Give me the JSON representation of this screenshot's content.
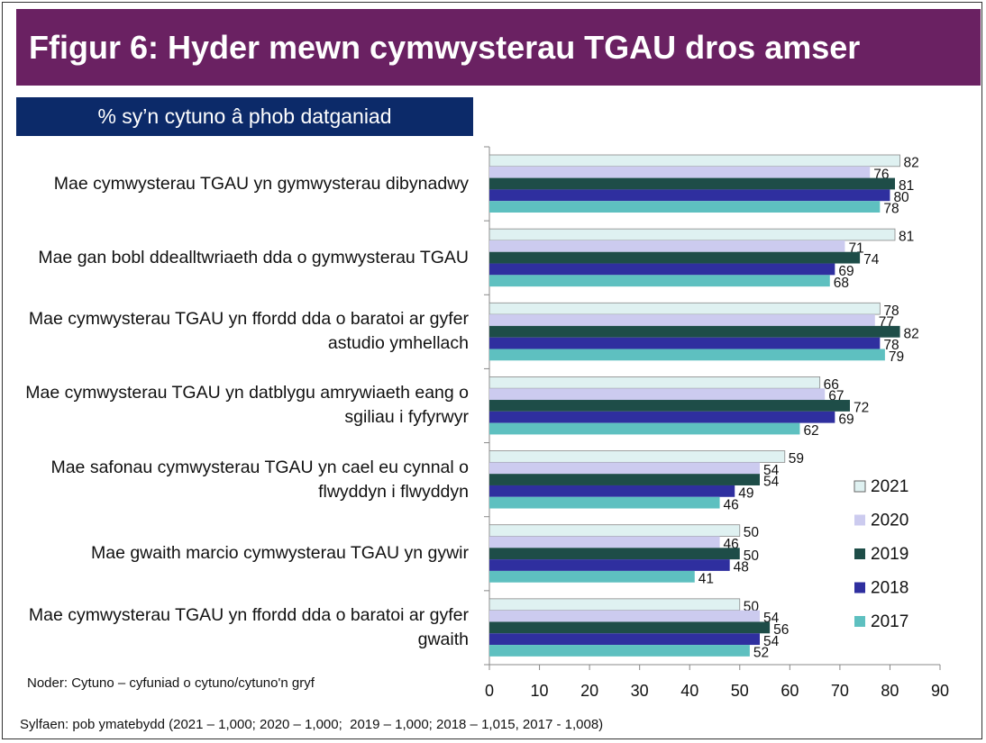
{
  "chart_data": {
    "type": "bar",
    "orientation": "horizontal",
    "title": "Ffigur 6: Hyder mewn cymwysterau TGAU dros amser",
    "subtitle": "% sy’n cytuno â phob datganiad",
    "categories": [
      "Mae cymwysterau TGAU yn gymwysterau dibynadwy",
      "Mae gan bobl ddealltwriaeth dda o gymwysterau TGAU",
      "Mae cymwysterau TGAU yn ffordd dda o baratoi ar gyfer astudio ymhellach",
      "Mae cymwysterau TGAU yn datblygu amrywiaeth eang o sgiliau i fyfyrwyr",
      "Mae safonau cymwysterau TGAU yn cael eu cynnal o flwyddyn i flwyddyn",
      "Mae gwaith marcio cymwysterau TGAU yn gywir",
      "Mae cymwysterau TGAU yn ffordd dda o baratoi ar gyfer gwaith"
    ],
    "series": [
      {
        "name": "2021",
        "color": "#dff1f1",
        "values": [
          82,
          81,
          78,
          66,
          59,
          50,
          50
        ]
      },
      {
        "name": "2020",
        "color": "#cccbef",
        "values": [
          76,
          71,
          77,
          67,
          54,
          46,
          54
        ]
      },
      {
        "name": "2019",
        "color": "#1e4d48",
        "values": [
          81,
          74,
          82,
          72,
          54,
          50,
          56
        ]
      },
      {
        "name": "2018",
        "color": "#2f2f9f",
        "values": [
          80,
          69,
          78,
          69,
          49,
          48,
          54
        ]
      },
      {
        "name": "2017",
        "color": "#5ec0c0",
        "values": [
          78,
          68,
          79,
          62,
          46,
          41,
          52
        ]
      }
    ],
    "xlim": [
      0,
      90
    ],
    "xticks": [
      0,
      10,
      20,
      30,
      40,
      50,
      60,
      70,
      80,
      90
    ],
    "note": "Noder: Cytuno – cyfuniad o cytuno/cytuno'n gryf",
    "footer": "Sylfaen: pob ymatebydd (2021 – 1,000; 2020 – 1,000;  2019 – 1,000; 2018 – 1,015, 2017 - 1,008)"
  }
}
